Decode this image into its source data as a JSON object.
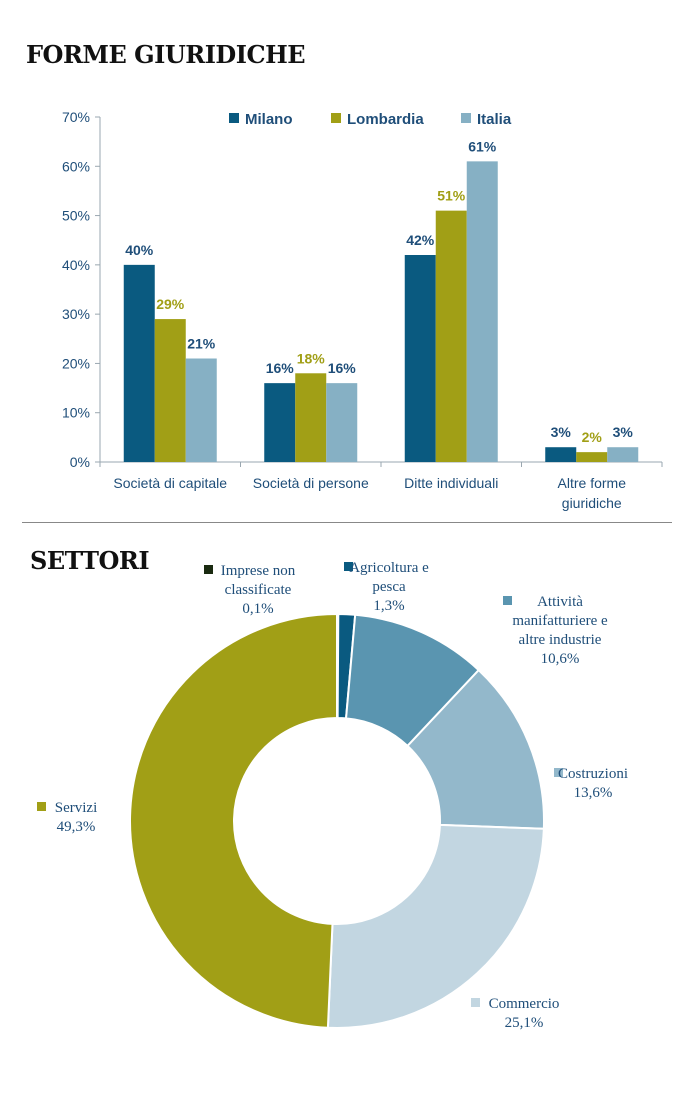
{
  "titles": {
    "legal_forms": "FORME GIURIDICHE",
    "sectors": "SETTORI"
  },
  "colors": {
    "milano": "#0a5a80",
    "lombardia": "#a19f16",
    "italia": "#86b0c4",
    "text": "#1f4e79"
  },
  "chart_data": [
    {
      "type": "bar",
      "title": "FORME GIURIDICHE",
      "categories": [
        [
          "Società di capitale"
        ],
        [
          "Società di persone"
        ],
        [
          "Ditte individuali"
        ],
        [
          "Altre forme",
          "giuridiche"
        ]
      ],
      "series": [
        {
          "name": "Milano",
          "values": [
            40,
            16,
            42,
            3
          ],
          "labels": [
            "40%",
            "16%",
            "42%",
            "3%"
          ],
          "color": "#0a5a80",
          "label_color": "#1f4e79"
        },
        {
          "name": "Lombardia",
          "values": [
            29,
            18,
            51,
            2
          ],
          "labels": [
            "29%",
            "18%",
            "51%",
            "2%"
          ],
          "color": "#a19f16",
          "label_color": "#a19f16"
        },
        {
          "name": "Italia",
          "values": [
            21,
            16,
            61,
            3
          ],
          "labels": [
            "21%",
            "16%",
            "61%",
            "3%"
          ],
          "color": "#86b0c4",
          "label_color": "#1f4e79"
        }
      ],
      "ylim": [
        0,
        70
      ],
      "yticks": [
        "0%",
        "10%",
        "20%",
        "30%",
        "40%",
        "50%",
        "60%",
        "70%"
      ],
      "legend_position": "top"
    },
    {
      "type": "pie",
      "title": "SETTORI",
      "slices": [
        {
          "name": [
            "Imprese non",
            "classificate"
          ],
          "value": 0.1,
          "label": "0,1%",
          "color": "#1a2a10"
        },
        {
          "name": [
            "Agricoltura e",
            "pesca"
          ],
          "value": 1.3,
          "label": "1,3%",
          "color": "#0a5a80"
        },
        {
          "name": [
            "Attività",
            "manifatturiere e",
            "altre industrie"
          ],
          "value": 10.6,
          "label": "10,6%",
          "color": "#5a95b0"
        },
        {
          "name": [
            "Costruzioni"
          ],
          "value": 13.6,
          "label": "13,6%",
          "color": "#93b8cb"
        },
        {
          "name": [
            "Commercio"
          ],
          "value": 25.1,
          "label": "25,1%",
          "color": "#c2d6e1"
        },
        {
          "name": [
            "Servizi"
          ],
          "value": 49.3,
          "label": "49,3%",
          "color": "#a19f16"
        }
      ]
    }
  ]
}
